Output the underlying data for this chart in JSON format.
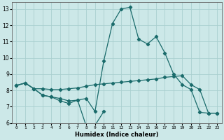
{
  "xlabel": "Humidex (Indice chaleur)",
  "bg_color": "#cce8e8",
  "grid_color": "#aacfcf",
  "line_color": "#1a6b6b",
  "xlim": [
    -0.5,
    23.5
  ],
  "ylim": [
    6,
    13.4
  ],
  "xticks": [
    0,
    1,
    2,
    3,
    4,
    5,
    6,
    7,
    8,
    9,
    10,
    11,
    12,
    13,
    14,
    15,
    16,
    17,
    18,
    19,
    20,
    21,
    22,
    23
  ],
  "yticks": [
    6,
    7,
    8,
    9,
    10,
    11,
    12,
    13
  ],
  "line_flat_x": [
    0,
    1,
    2,
    3,
    4,
    5,
    6,
    7,
    8,
    9,
    10,
    11,
    12,
    13,
    14,
    15,
    16,
    17,
    18,
    19,
    20,
    21,
    22,
    23
  ],
  "line_flat_y": [
    8.3,
    8.45,
    8.1,
    8.1,
    8.05,
    8.05,
    8.1,
    8.15,
    8.25,
    8.35,
    8.4,
    8.45,
    8.5,
    8.55,
    8.6,
    8.65,
    8.7,
    8.8,
    8.85,
    8.9,
    8.35,
    8.05,
    6.6,
    6.6
  ],
  "line_dip_x": [
    0,
    1,
    2,
    3,
    4,
    5,
    6,
    7,
    8,
    9,
    10
  ],
  "line_dip_y": [
    8.3,
    8.45,
    8.1,
    7.7,
    7.6,
    7.35,
    7.2,
    7.4,
    5.8,
    5.85,
    6.7
  ],
  "line_peak_x": [
    0,
    1,
    2,
    3,
    4,
    5,
    6,
    7,
    8,
    9,
    10,
    11,
    12,
    13,
    14,
    15,
    16,
    17,
    18,
    19,
    20,
    21,
    22,
    23
  ],
  "line_peak_y": [
    8.3,
    8.45,
    8.1,
    7.7,
    7.6,
    7.5,
    7.35,
    7.4,
    7.5,
    6.7,
    9.8,
    12.1,
    13.0,
    13.1,
    11.15,
    10.85,
    11.3,
    10.3,
    9.0,
    8.35,
    8.05,
    6.65,
    6.6,
    6.6
  ]
}
